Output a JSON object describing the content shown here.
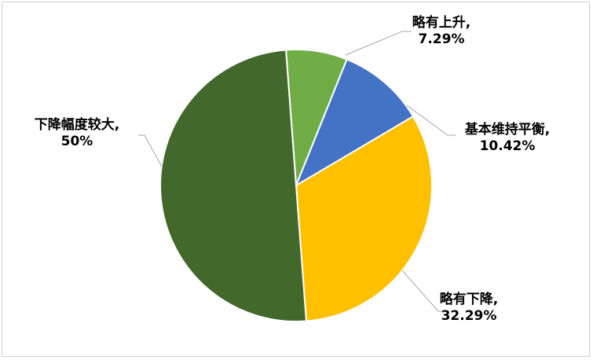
{
  "chart_data": {
    "type": "pie",
    "title": "",
    "slices": [
      {
        "label": "略有上升",
        "value": 7.29,
        "display": "7.29%",
        "color": "#70AD47"
      },
      {
        "label": "基本维持平衡",
        "value": 10.42,
        "display": "10.42%",
        "color": "#4472C4"
      },
      {
        "label": "略有下降",
        "value": 32.29,
        "display": "32.29%",
        "color": "#FFC000"
      },
      {
        "label": "下降幅度较大",
        "value": 50,
        "display": "50%",
        "color": "#43682B"
      }
    ],
    "data_labels": "outside-with-leader-lines",
    "legend": "none"
  }
}
